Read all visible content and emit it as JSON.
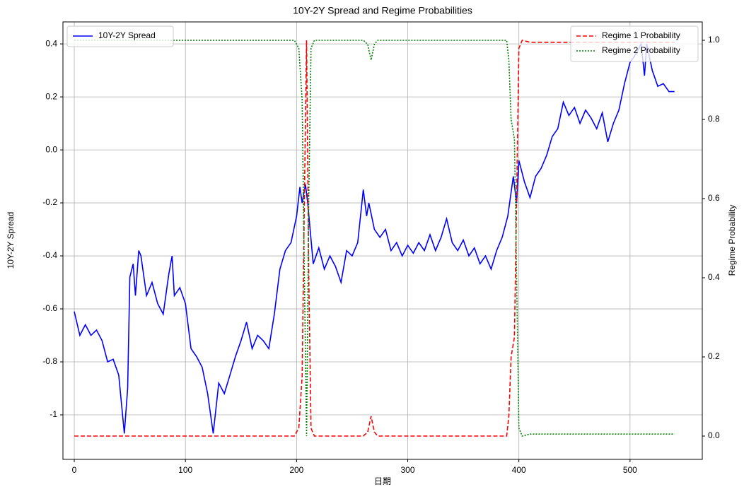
{
  "chart_data": {
    "type": "line",
    "title": "10Y-2Y Spread and Regime Probabilities",
    "xlabel": "日期",
    "ylabel": "10Y-2Y Spread",
    "y2label": "Regime Probability",
    "xlim": [
      -10.2,
      565
    ],
    "ylim": [
      -1.168,
      0.483
    ],
    "y2lim": [
      -0.0589,
      1.0464
    ],
    "xticks": [
      0,
      100,
      200,
      300,
      400,
      500
    ],
    "yticks": [
      -1,
      -0.8,
      -0.6,
      -0.4,
      -0.2,
      {
        "value": 0,
        "label": "0.0"
      },
      0.2,
      0.4
    ],
    "y2ticks": [
      {
        "value": 0,
        "label": "0.0"
      },
      0.2,
      0.4,
      0.6,
      0.8,
      {
        "value": 1,
        "label": "1.0"
      }
    ],
    "grid": true,
    "legend_loc": "upper left",
    "legend2_loc": "upper right",
    "series": [
      {
        "name": "10Y-2Y Spread",
        "color": "blue",
        "style": "solid",
        "x": [
          0,
          5,
          10,
          15,
          20,
          25,
          30,
          35,
          40,
          45,
          48,
          50,
          53,
          55,
          58,
          60,
          65,
          70,
          75,
          80,
          85,
          88,
          90,
          95,
          100,
          105,
          110,
          115,
          120,
          125,
          130,
          135,
          140,
          145,
          150,
          155,
          160,
          165,
          170,
          175,
          180,
          185,
          190,
          195,
          200,
          203,
          205,
          208,
          210,
          215,
          220,
          225,
          230,
          235,
          240,
          245,
          250,
          255,
          260,
          263,
          265,
          270,
          275,
          280,
          285,
          290,
          295,
          300,
          305,
          310,
          315,
          320,
          325,
          330,
          335,
          340,
          345,
          350,
          355,
          360,
          365,
          370,
          375,
          380,
          385,
          390,
          395,
          398,
          400,
          405,
          410,
          415,
          420,
          425,
          430,
          435,
          440,
          445,
          450,
          455,
          460,
          465,
          470,
          475,
          480,
          485,
          490,
          495,
          500,
          505,
          510,
          513,
          515,
          520,
          525,
          530,
          535,
          540
        ],
        "values": [
          -0.61,
          -0.7,
          -0.66,
          -0.7,
          -0.68,
          -0.72,
          -0.8,
          -0.79,
          -0.85,
          -1.07,
          -0.9,
          -0.48,
          -0.43,
          -0.55,
          -0.38,
          -0.4,
          -0.55,
          -0.5,
          -0.58,
          -0.62,
          -0.47,
          -0.4,
          -0.55,
          -0.52,
          -0.58,
          -0.75,
          -0.78,
          -0.82,
          -0.92,
          -1.07,
          -0.88,
          -0.92,
          -0.85,
          -0.78,
          -0.72,
          -0.65,
          -0.75,
          -0.7,
          -0.72,
          -0.75,
          -0.62,
          -0.45,
          -0.38,
          -0.35,
          -0.25,
          -0.14,
          -0.2,
          -0.13,
          -0.2,
          -0.43,
          -0.37,
          -0.45,
          -0.4,
          -0.44,
          -0.5,
          -0.38,
          -0.4,
          -0.35,
          -0.15,
          -0.25,
          -0.2,
          -0.3,
          -0.33,
          -0.3,
          -0.38,
          -0.35,
          -0.4,
          -0.36,
          -0.39,
          -0.35,
          -0.38,
          -0.32,
          -0.38,
          -0.33,
          -0.26,
          -0.35,
          -0.38,
          -0.34,
          -0.4,
          -0.37,
          -0.43,
          -0.4,
          -0.45,
          -0.38,
          -0.33,
          -0.25,
          -0.1,
          -0.2,
          -0.04,
          -0.12,
          -0.18,
          -0.1,
          -0.07,
          -0.02,
          0.05,
          0.08,
          0.18,
          0.13,
          0.16,
          0.1,
          0.15,
          0.12,
          0.08,
          0.14,
          0.03,
          0.1,
          0.15,
          0.25,
          0.33,
          0.36,
          0.4,
          0.28,
          0.4,
          0.3,
          0.24,
          0.25,
          0.22,
          0.22
        ]
      },
      {
        "name": "Regime 1 Probability",
        "color": "red",
        "style": "dashed",
        "axis": "y2",
        "x": [
          0,
          198,
          202,
          205,
          207,
          209,
          211,
          213,
          216,
          260,
          264,
          267,
          270,
          273,
          389,
          391,
          393,
          396,
          398,
          400,
          403,
          410,
          540
        ],
        "values": [
          0,
          0,
          0.02,
          0.15,
          0.6,
          1.0,
          0.4,
          0.02,
          0,
          0,
          0.01,
          0.05,
          0.01,
          0,
          0,
          0.05,
          0.2,
          0.25,
          0.6,
          0.98,
          1.0,
          0.995,
          0.995
        ]
      },
      {
        "name": "Regime 2 Probability",
        "color": "green",
        "style": "dotted",
        "axis": "y2",
        "x": [
          0,
          198,
          202,
          205,
          207,
          209,
          211,
          213,
          216,
          260,
          264,
          267,
          270,
          273,
          389,
          391,
          393,
          396,
          398,
          400,
          403,
          410,
          540
        ],
        "values": [
          1,
          1,
          0.98,
          0.85,
          0.4,
          0,
          0.6,
          0.98,
          1,
          1,
          0.99,
          0.95,
          0.99,
          1,
          1,
          0.95,
          0.8,
          0.75,
          0.4,
          0.02,
          0,
          0.005,
          0.005
        ]
      }
    ]
  }
}
